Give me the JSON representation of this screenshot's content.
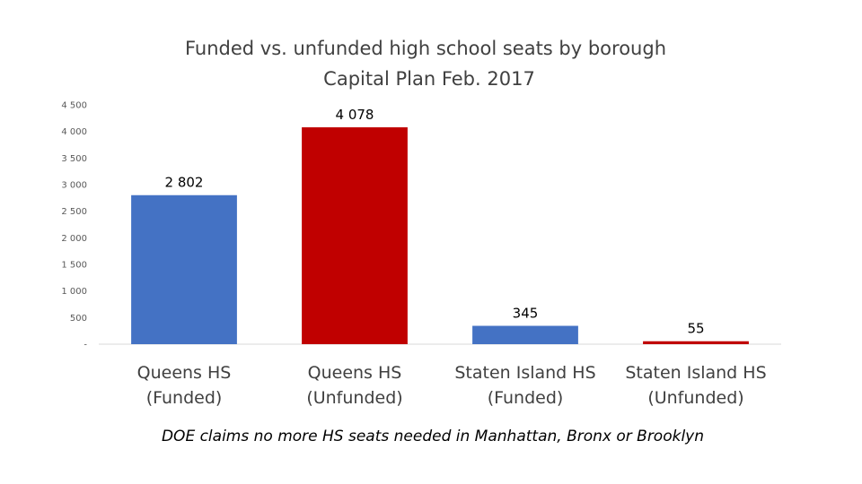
{
  "chart_data": {
    "type": "bar",
    "title": [
      "Funded vs. unfunded high school seats by borough",
      "Capital Plan Feb. 2017"
    ],
    "categories": [
      [
        "Queens HS",
        "(Funded)"
      ],
      [
        "Queens HS",
        "(Unfunded)"
      ],
      [
        "Staten Island HS",
        "(Funded)"
      ],
      [
        "Staten Island HS",
        "(Unfunded)"
      ]
    ],
    "values": [
      2802,
      4078,
      345,
      55
    ],
    "data_labels": [
      "2 802",
      "4 078",
      "345",
      "55"
    ],
    "colors": [
      "#4472C4",
      "#C00000",
      "#4472C4",
      "#C00000"
    ],
    "ylim": [
      0,
      4500
    ],
    "yticks": [
      0,
      500,
      1000,
      1500,
      2000,
      2500,
      3000,
      3500,
      4000,
      4500
    ],
    "ytick_labels": [
      "-",
      "500",
      "1 000",
      "1 500",
      "2 000",
      "2 500",
      "3 000",
      "3 500",
      "4 000",
      "4 500"
    ],
    "grid": false,
    "legend": "none",
    "xlabel": "",
    "ylabel": ""
  },
  "footnote": "DOE claims no more HS seats needed in Manhattan, Bronx or Brooklyn"
}
